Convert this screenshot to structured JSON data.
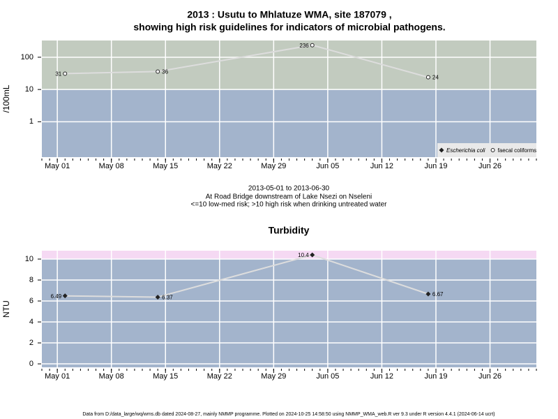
{
  "chart_data": [
    {
      "type": "line",
      "title": [
        "2013 : Usutu to Mhlatuze WMA, site 187079 ,",
        "showing high risk guidelines for indicators of microbial pathogens."
      ],
      "ylabel": "/100mL",
      "log_y": true,
      "x": [
        "May 02",
        "May 14",
        "Jun 03",
        "Jun 18"
      ],
      "series": [
        {
          "name": "Escherichia coli",
          "marker": "diamond",
          "color": "#222222",
          "values": [
            null,
            null,
            null,
            null
          ]
        },
        {
          "name": "faecal coliforms",
          "marker": "circle",
          "color": "#222222",
          "values": [
            31,
            36,
            236,
            24
          ]
        }
      ],
      "xlim": [
        "Apr 29",
        "Jul 02"
      ],
      "xticks": [
        "May 01",
        "May 08",
        "May 15",
        "May 22",
        "May 29",
        "Jun 05",
        "Jun 12",
        "Jun 19",
        "Jun 26"
      ],
      "ylim": [
        0.08,
        330
      ],
      "yticks": [
        1,
        10,
        100
      ],
      "threshold": 10,
      "band_colors": {
        "above": "#c2cbbf",
        "below": "#a3b4cc"
      },
      "line_color": "#dddddd",
      "grid": true,
      "legend": "bottom-right",
      "annotations": [
        "2013-05-01 to 2013-06-30",
        "At Road Bridge downstream of Lake Nsezi on Nseleni",
        "<=10 low-med risk; >10 high risk when drinking untreated water"
      ]
    },
    {
      "type": "line",
      "title": "Turbidity",
      "ylabel": "NTU",
      "log_y": false,
      "x": [
        "May 02",
        "May 14",
        "Jun 03",
        "Jun 18"
      ],
      "series": [
        {
          "marker": "diamond",
          "color": "#222222",
          "values": [
            6.49,
            6.37,
            10.4,
            6.67
          ]
        }
      ],
      "xlim": [
        "Apr 29",
        "Jul 02"
      ],
      "xticks": [
        "May 01",
        "May 08",
        "May 15",
        "May 22",
        "May 29",
        "Jun 05",
        "Jun 12",
        "Jun 19",
        "Jun 26"
      ],
      "ylim": [
        -0.33,
        10.8
      ],
      "yticks": [
        0,
        2,
        4,
        6,
        8,
        10
      ],
      "threshold": 10,
      "band_colors": {
        "above": "#f5d9f3",
        "below": "#a3b4cc"
      },
      "line_color": "#dddddd",
      "grid": true
    }
  ],
  "footer": "Data from D:/data_large/wq/wms.db dated 2024-08-27, mainly NMMP programme. Plotted on 2024-10-25 14:58:50 using NMMP_WMA_web.R ver 9.3 under R version 4.4.1 (2024-06-14 ucrt)"
}
